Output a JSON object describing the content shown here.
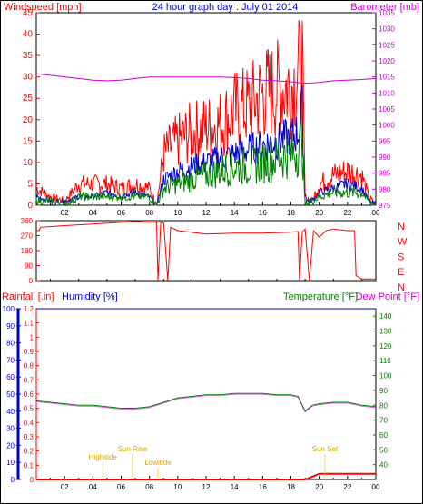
{
  "header": {
    "windspeed_label": "Windspeed [mph]",
    "title": "24 hour graph day : July 01 2014",
    "barometer_label": "Barometer [mb]"
  },
  "colors": {
    "wind": "#ff0000",
    "gust_blue": "#0000cc",
    "green": "#008000",
    "barometer": "#cc00cc",
    "axis_blue": "#0000cc",
    "astro": "#ffcc00",
    "frame": "#000000"
  },
  "x_ticks": [
    "02",
    "04",
    "06",
    "08",
    "10",
    "12",
    "14",
    "16",
    "18",
    "20",
    "22",
    "00"
  ],
  "chart_data": [
    {
      "type": "line",
      "name": "wind-barometer",
      "x_unit": "hour",
      "xlim": [
        0,
        24
      ],
      "ylim": [
        0,
        45
      ],
      "y_ticks": [
        "0",
        "5",
        "10",
        "15",
        "20",
        "25",
        "30",
        "35",
        "40",
        "45"
      ],
      "y2lim": [
        975,
        1035
      ],
      "y2_ticks": [
        "975",
        "980",
        "985",
        "990",
        "995",
        "1000",
        "1005",
        "1010",
        "1015",
        "1020",
        "1025",
        "1030",
        "1035"
      ],
      "series": [
        {
          "color_key": "wind",
          "x": [
            0,
            1,
            2,
            3,
            4,
            5,
            6,
            7,
            8,
            8.5,
            9,
            10,
            11,
            12,
            13,
            14,
            15,
            16,
            17,
            18,
            18.5,
            18.8,
            19,
            19.5,
            20,
            21,
            22,
            23,
            23.5,
            24
          ],
          "values": [
            4,
            2,
            1,
            5,
            5,
            5,
            4,
            5,
            4,
            0,
            12,
            15,
            17,
            18,
            19,
            22,
            23,
            26,
            27,
            28,
            30,
            33,
            2,
            1,
            5,
            7,
            8,
            7,
            2,
            0
          ]
        },
        {
          "color_key": "gust_blue",
          "x": [
            0,
            1,
            2,
            3,
            4,
            5,
            6,
            7,
            8,
            8.5,
            9,
            10,
            11,
            12,
            13,
            14,
            15,
            16,
            17,
            18,
            18.5,
            18.8,
            19,
            19.5,
            20,
            21,
            22,
            23,
            23.5,
            24
          ],
          "values": [
            2,
            1,
            1,
            2,
            2,
            3,
            2,
            3,
            2,
            0,
            6,
            8,
            9,
            10,
            11,
            12,
            13,
            14,
            15,
            16,
            17,
            22,
            1,
            1,
            3,
            4,
            5,
            4,
            1,
            0
          ]
        },
        {
          "color_key": "green",
          "x": [
            0,
            1,
            2,
            3,
            4,
            5,
            6,
            7,
            8,
            8.5,
            9,
            10,
            11,
            12,
            13,
            14,
            15,
            16,
            17,
            18,
            18.5,
            18.8,
            19,
            19.5,
            20,
            21,
            22,
            23,
            23.5,
            24
          ],
          "values": [
            1,
            1,
            0,
            2,
            2,
            2,
            2,
            2,
            2,
            0,
            4,
            5,
            6,
            7,
            8,
            9,
            9,
            10,
            11,
            12,
            13,
            15,
            0,
            1,
            2,
            3,
            3,
            3,
            1,
            0
          ]
        },
        {
          "color_key": "barometer",
          "axis": "right",
          "x": [
            0,
            1,
            2,
            3,
            4,
            5,
            6,
            7,
            8,
            9,
            10,
            11,
            12,
            13,
            14,
            15,
            16,
            17,
            18,
            19,
            20,
            21,
            22,
            23,
            24
          ],
          "values": [
            1016,
            1015.5,
            1015,
            1014.5,
            1014,
            1013.8,
            1014,
            1014.5,
            1015,
            1015,
            1015,
            1015,
            1015,
            1015,
            1014.8,
            1014.5,
            1014,
            1013.8,
            1013.5,
            1013,
            1013.3,
            1013.8,
            1014,
            1014.2,
            1014.5
          ]
        }
      ]
    },
    {
      "type": "line",
      "name": "wind-direction",
      "x_unit": "hour",
      "xlim": [
        0,
        24
      ],
      "ylim": [
        0,
        360
      ],
      "y_ticks": [
        "0",
        "90",
        "180",
        "270",
        "360"
      ],
      "compass": [
        "N",
        "W",
        "S",
        "E",
        "N"
      ],
      "series": [
        {
          "color_key": "wind",
          "x": [
            0,
            0.2,
            0.3,
            2,
            4,
            6,
            7,
            8,
            8.5,
            8.6,
            8.8,
            9,
            9.3,
            9.5,
            10,
            12,
            14,
            16,
            18,
            18.5,
            18.6,
            18.8,
            19,
            19.3,
            19.6,
            20,
            20.5,
            21,
            22,
            22.5,
            22.6,
            23,
            24
          ],
          "values": [
            300,
            300,
            320,
            330,
            340,
            350,
            355,
            350,
            350,
            0,
            350,
            345,
            0,
            320,
            300,
            280,
            285,
            285,
            290,
            295,
            0,
            290,
            310,
            0,
            300,
            260,
            300,
            310,
            300,
            300,
            30,
            10,
            10
          ]
        }
      ]
    },
    {
      "type": "line",
      "name": "rain-humidity-temperature",
      "x_unit": "hour",
      "xlim": [
        0,
        24
      ],
      "ylim": [
        0,
        1.2
      ],
      "y_ticks": [
        "0",
        "0.1",
        "0.2",
        "0.3",
        "0.4",
        "0.5",
        "0.6",
        "0.7",
        "0.8",
        "0.9",
        "1",
        "1.1",
        "1.2"
      ],
      "y2lim": [
        30,
        145
      ],
      "y2_ticks": [
        "40",
        "50",
        "60",
        "70",
        "80",
        "90",
        "100",
        "110",
        "120",
        "130",
        "140"
      ],
      "y3_ticks": [
        "0",
        "10",
        "20",
        "30",
        "40",
        "50",
        "60",
        "70",
        "80",
        "90",
        "100"
      ],
      "series": [
        {
          "color_key": "wind",
          "x": [
            0,
            19,
            19.5,
            20,
            24
          ],
          "values": [
            0,
            0,
            0.02,
            0.04,
            0.04
          ]
        },
        {
          "color_key": "axis_blue",
          "x": [
            0,
            24
          ],
          "values": [
            100,
            100
          ]
        },
        {
          "color_key": "green",
          "axis": "right",
          "x": [
            0,
            1,
            2,
            3,
            4,
            5,
            6,
            7,
            8,
            9,
            10,
            11,
            12,
            13,
            14,
            15,
            16,
            17,
            18,
            18.5,
            19,
            19.5,
            20,
            21,
            22,
            23,
            24
          ],
          "values": [
            83,
            82,
            81,
            80,
            80,
            79,
            78,
            78,
            79,
            82,
            85,
            86,
            87,
            87,
            88,
            88,
            88,
            87,
            87,
            86,
            76,
            80,
            81,
            82,
            82,
            80,
            79
          ]
        }
      ],
      "annotations": [
        "Highitide",
        "Sun Rise",
        "Lowitide",
        "Sun Set"
      ]
    }
  ],
  "lower_header": {
    "rainfall_label": "Rainfall [.in]",
    "humidity_label": "Humidity [%]",
    "temperature_label": "Temperature [°F]",
    "dewpoint_label": "Dew Point [°F]"
  }
}
